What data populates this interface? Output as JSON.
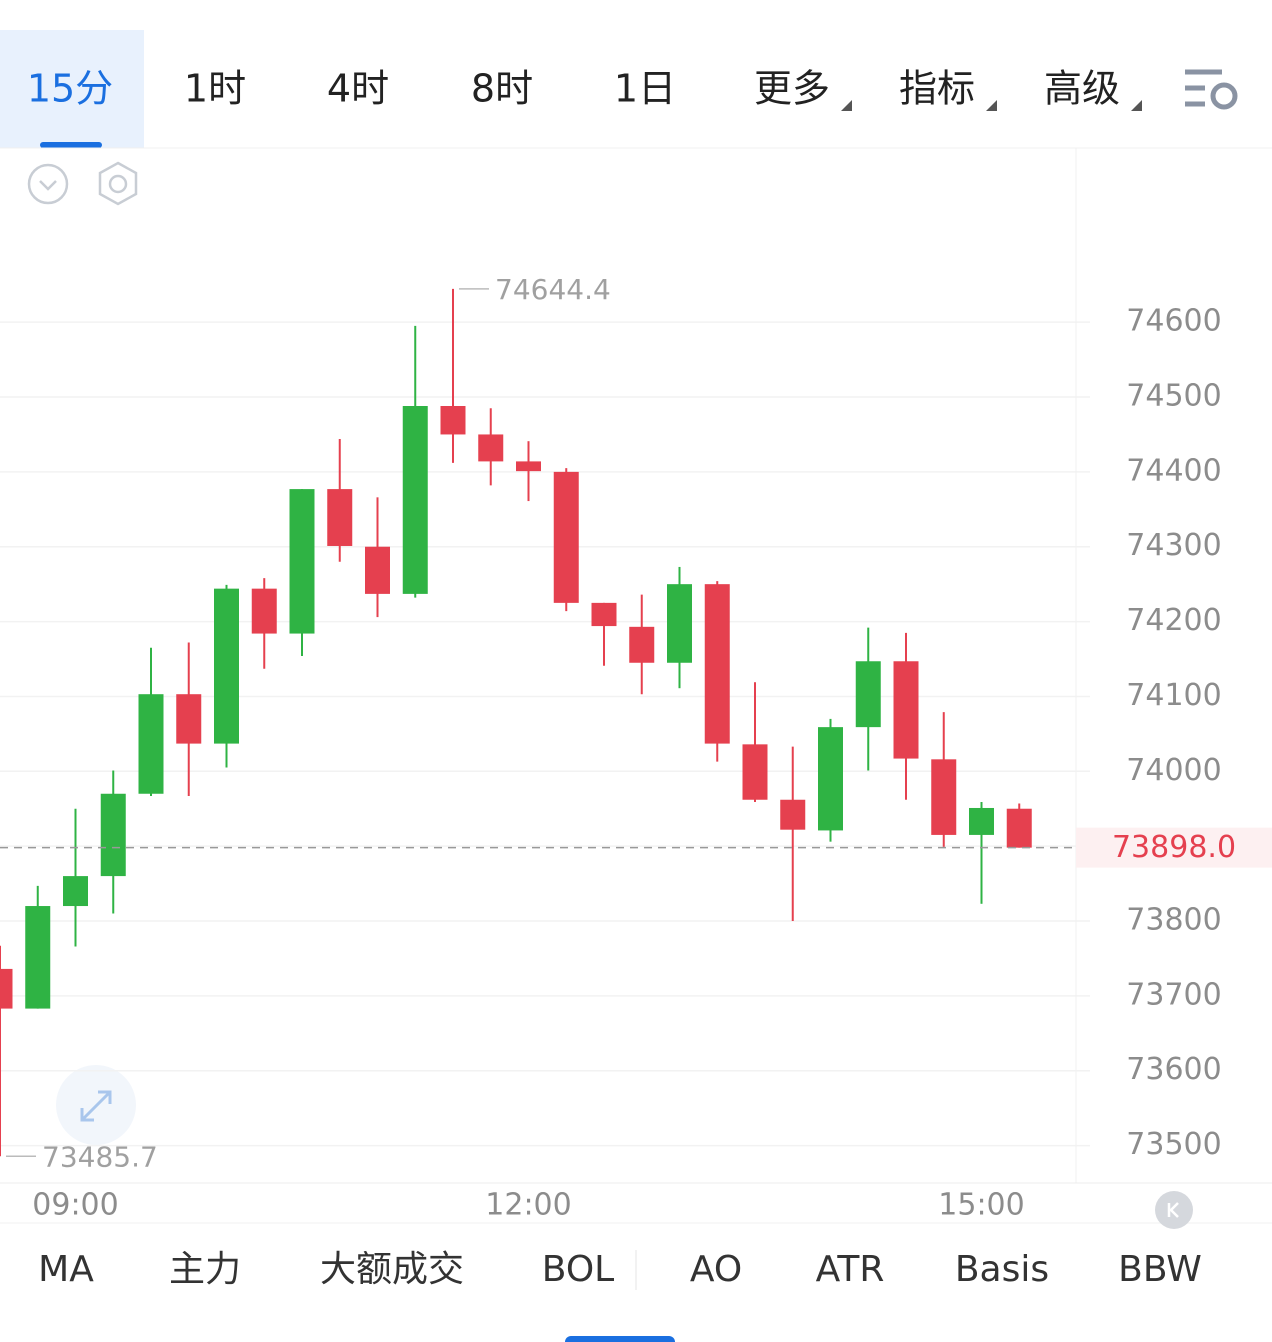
{
  "tabs": [
    "15分",
    "1时",
    "4时",
    "8时",
    "1日",
    "更多",
    "指标",
    "高级"
  ],
  "indicators": [
    "MA",
    "主力",
    "大额成交",
    "BOL",
    "AO",
    "ATR",
    "Basis",
    "BBW"
  ],
  "chart_data": {
    "type": "candlestick",
    "categories": [
      null,
      null,
      "09:00",
      null,
      null,
      null,
      null,
      null,
      null,
      null,
      null,
      null,
      null,
      null,
      "12:00",
      null,
      null,
      null,
      null,
      null,
      null,
      null,
      null,
      null,
      null,
      null,
      "15:00",
      null
    ],
    "open": [
      73736,
      73683,
      73820,
      73860,
      73970,
      74103,
      74037,
      74244,
      74184,
      74377,
      74300,
      74237,
      74488,
      74450,
      74414,
      74400,
      74225,
      74193,
      74145,
      74250,
      74036,
      73962,
      73921,
      74059,
      74147,
      74016,
      73915,
      73950
    ],
    "high": [
      73767,
      73847,
      73950,
      74001,
      74165,
      74172,
      74249,
      74258,
      74377,
      74444,
      74366,
      74595,
      74644.4,
      74485,
      74441,
      74405,
      74225,
      74236,
      74273,
      74254,
      74119,
      74033,
      74070,
      74192,
      74185,
      74079,
      73959,
      73957
    ],
    "low": [
      73485.7,
      73683,
      73766,
      73810,
      73967,
      73967,
      74005,
      74137,
      74154,
      74280,
      74206,
      74232,
      74412,
      74382,
      74361,
      74214,
      74141,
      74103,
      74111,
      74013,
      73959,
      73800,
      73906,
      74001,
      73962,
      73899,
      73823,
      73898
    ],
    "close": [
      73683,
      73820,
      73860,
      73970,
      74103,
      74037,
      74244,
      74184,
      74377,
      74301,
      74237,
      74488,
      74450,
      74414,
      74401,
      74225,
      74194,
      74145,
      74250,
      74037,
      73962,
      73922,
      74059,
      74147,
      74017,
      73915,
      73951,
      73898
    ],
    "last_price_label": "73898.0",
    "up_color": "#2fb344",
    "down_color": "#e5404f",
    "ylim": [
      73450,
      74830
    ],
    "yticks": [
      73500,
      73600,
      73700,
      73800,
      73900,
      74000,
      74100,
      74200,
      74300,
      74400,
      74500,
      74600
    ],
    "grid": true
  }
}
